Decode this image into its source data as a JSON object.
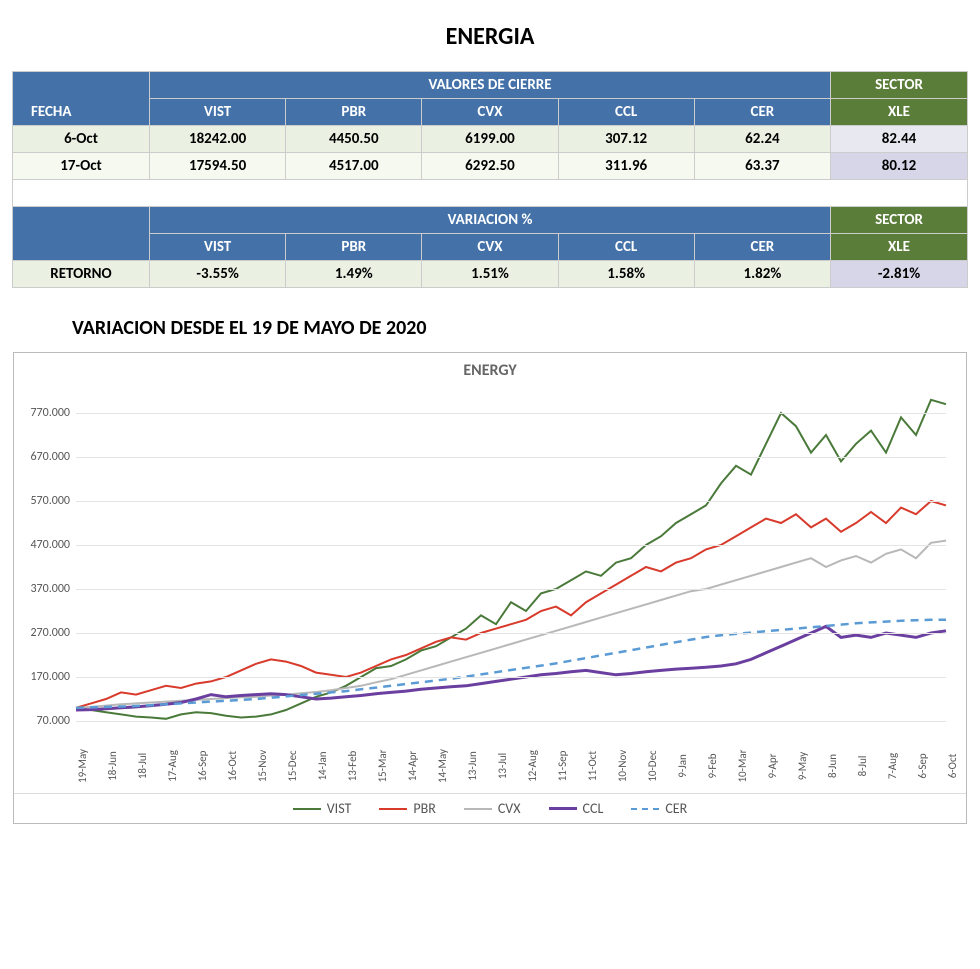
{
  "title": "ENERGIA",
  "table1": {
    "group_header": "VALORES DE CIERRE",
    "sector_header_top": "SECTOR",
    "sector_header_sub": "XLE",
    "col0": "FECHA",
    "cols": [
      "VIST",
      "PBR",
      "CVX",
      "CCL",
      "CER"
    ],
    "rows": [
      {
        "fecha": "6-Oct",
        "vals": [
          "18242.00",
          "4450.50",
          "6199.00",
          "307.12",
          "62.24"
        ],
        "sector": "82.44"
      },
      {
        "fecha": "17-Oct",
        "vals": [
          "17594.50",
          "4517.00",
          "6292.50",
          "311.96",
          "63.37"
        ],
        "sector": "80.12"
      }
    ]
  },
  "table2": {
    "group_header": "VARIACION %",
    "sector_header_top": "SECTOR",
    "sector_header_sub": "XLE",
    "cols": [
      "VIST",
      "PBR",
      "CVX",
      "CCL",
      "CER"
    ],
    "row_label": "RETORNO",
    "vals": [
      "-3.55%",
      "1.49%",
      "1.51%",
      "1.58%",
      "1.82%"
    ],
    "sector": "-2.81%"
  },
  "subtitle": "VARIACION DESDE EL 19 DE MAYO DE 2020",
  "chart": {
    "type": "line",
    "title": "ENERGY",
    "ylim": [
      70,
      820
    ],
    "yticks": [
      70,
      170,
      270,
      370,
      470,
      570,
      670,
      770
    ],
    "ytick_labels": [
      "70.000",
      "170.000",
      "270.000",
      "370.000",
      "470.000",
      "570.000",
      "670.000",
      "770.000"
    ],
    "xticks": [
      "19-May",
      "18-Jun",
      "18-Jul",
      "17-Aug",
      "16-Sep",
      "16-Oct",
      "15-Nov",
      "15-Dec",
      "14-Jan",
      "13-Feb",
      "15-Mar",
      "14-Apr",
      "14-May",
      "13-Jun",
      "13-Jul",
      "12-Aug",
      "11-Sep",
      "11-Oct",
      "10-Nov",
      "10-Dec",
      "9-Jan",
      "9-Feb",
      "10-Mar",
      "9-Apr",
      "9-May",
      "8-Jun",
      "8-Jul",
      "7-Aug",
      "6-Sep",
      "6-Oct"
    ],
    "grid_color": "#e4e4e4",
    "background_color": "#ffffff",
    "label_fontsize": 12,
    "series": [
      {
        "name": "VIST",
        "color": "#4a7a3a",
        "width": 2,
        "dash": "",
        "values": [
          100,
          95,
          90,
          85,
          80,
          78,
          75,
          85,
          90,
          88,
          82,
          78,
          80,
          85,
          95,
          110,
          125,
          135,
          150,
          170,
          190,
          195,
          210,
          230,
          240,
          260,
          280,
          310,
          290,
          340,
          320,
          360,
          370,
          390,
          410,
          400,
          430,
          440,
          470,
          490,
          520,
          540,
          560,
          610,
          650,
          630,
          700,
          770,
          740,
          680,
          720,
          660,
          700,
          730,
          680,
          760,
          720,
          800,
          790
        ]
      },
      {
        "name": "PBR",
        "color": "#d83a2b",
        "width": 2,
        "dash": "",
        "values": [
          100,
          110,
          120,
          135,
          130,
          140,
          150,
          145,
          155,
          160,
          170,
          185,
          200,
          210,
          205,
          195,
          180,
          175,
          170,
          180,
          195,
          210,
          220,
          235,
          250,
          260,
          255,
          270,
          280,
          290,
          300,
          320,
          330,
          310,
          340,
          360,
          380,
          400,
          420,
          410,
          430,
          440,
          460,
          470,
          490,
          510,
          530,
          520,
          540,
          510,
          530,
          500,
          520,
          545,
          520,
          555,
          540,
          570,
          560
        ]
      },
      {
        "name": "CVX",
        "color": "#b8b8b8",
        "width": 2,
        "dash": "",
        "values": [
          100,
          102,
          105,
          108,
          110,
          112,
          114,
          116,
          118,
          120,
          122,
          124,
          125,
          128,
          130,
          133,
          136,
          140,
          145,
          150,
          158,
          165,
          175,
          185,
          195,
          205,
          215,
          225,
          235,
          245,
          255,
          265,
          275,
          285,
          295,
          305,
          315,
          325,
          335,
          345,
          355,
          365,
          370,
          380,
          390,
          400,
          410,
          420,
          430,
          440,
          420,
          435,
          445,
          430,
          450,
          460,
          440,
          475,
          480
        ]
      },
      {
        "name": "CCL",
        "color": "#6b3fa0",
        "width": 3,
        "dash": "",
        "values": [
          95,
          96,
          98,
          100,
          102,
          105,
          108,
          112,
          120,
          130,
          125,
          128,
          130,
          132,
          130,
          125,
          120,
          122,
          125,
          128,
          132,
          135,
          138,
          142,
          145,
          148,
          150,
          155,
          160,
          165,
          170,
          175,
          178,
          182,
          185,
          180,
          175,
          178,
          182,
          185,
          188,
          190,
          192,
          195,
          200,
          210,
          225,
          240,
          255,
          270,
          285,
          260,
          265,
          260,
          270,
          265,
          260,
          270,
          275
        ]
      },
      {
        "name": "CER",
        "color": "#5a9bd5",
        "width": 2.5,
        "dash": "8,6",
        "values": [
          100,
          101,
          102,
          103,
          104,
          106,
          108,
          110,
          112,
          114,
          116,
          118,
          120,
          123,
          126,
          129,
          132,
          135,
          138,
          142,
          146,
          150,
          154,
          158,
          162,
          166,
          171,
          176,
          181,
          186,
          191,
          196,
          201,
          207,
          213,
          219,
          225,
          231,
          237,
          243,
          249,
          255,
          261,
          265,
          268,
          271,
          274,
          277,
          280,
          283,
          286,
          289,
          292,
          294,
          296,
          298,
          299,
          300,
          300
        ]
      }
    ]
  }
}
